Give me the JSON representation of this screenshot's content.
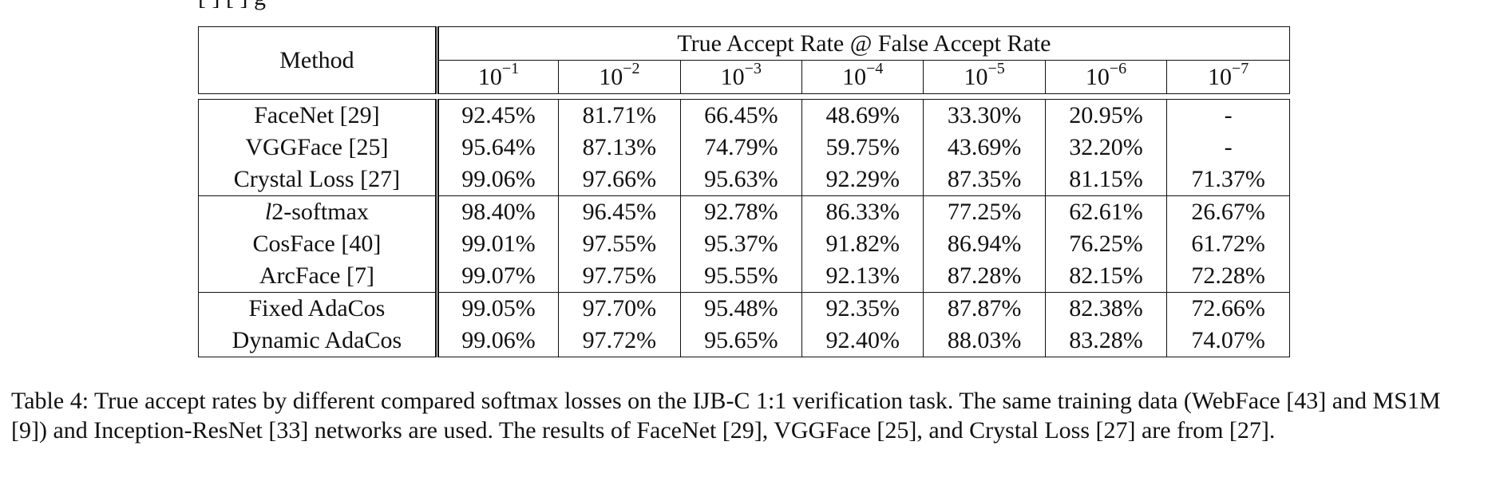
{
  "top_fragment": "[ ]              [ ]          g",
  "table": {
    "method_header": "Method",
    "group_header": "True Accept Rate @ False Accept Rate",
    "far_base": "10",
    "far_exponents": [
      "−1",
      "−2",
      "−3",
      "−4",
      "−5",
      "−6",
      "−7"
    ],
    "groups": [
      {
        "rows": [
          {
            "method": "FaceNet [29]",
            "bold_method": false,
            "values": [
              "92.45%",
              "81.71%",
              "66.45%",
              "48.69%",
              "33.30%",
              "20.95%",
              "-"
            ],
            "bold": [
              false,
              false,
              false,
              false,
              false,
              false,
              false
            ]
          },
          {
            "method": "VGGFace [25]",
            "bold_method": false,
            "values": [
              "95.64%",
              "87.13%",
              "74.79%",
              "59.75%",
              "43.69%",
              "32.20%",
              "-"
            ],
            "bold": [
              false,
              false,
              false,
              false,
              false,
              false,
              false
            ]
          },
          {
            "method": "Crystal Loss [27]",
            "bold_method": false,
            "values": [
              "99.06%",
              "97.66%",
              "95.63%",
              "92.29%",
              "87.35%",
              "81.15%",
              "71.37%"
            ],
            "bold": [
              false,
              false,
              false,
              false,
              false,
              false,
              false
            ]
          }
        ]
      },
      {
        "rows": [
          {
            "method": "l2-softmax",
            "bold_method": false,
            "values": [
              "98.40%",
              "96.45%",
              "92.78%",
              "86.33%",
              "77.25%",
              "62.61%",
              "26.67%"
            ],
            "bold": [
              false,
              false,
              false,
              false,
              false,
              false,
              false
            ]
          },
          {
            "method": "CosFace [40]",
            "bold_method": false,
            "values": [
              "99.01%",
              "97.55%",
              "95.37%",
              "91.82%",
              "86.94%",
              "76.25%",
              "61.72%"
            ],
            "bold": [
              false,
              false,
              false,
              false,
              false,
              false,
              false
            ]
          },
          {
            "method": "ArcFace [7]",
            "bold_method": false,
            "values": [
              "99.07%",
              "97.75%",
              "95.55%",
              "92.13%",
              "87.28%",
              "82.15%",
              "72.28%"
            ],
            "bold": [
              true,
              true,
              false,
              false,
              false,
              false,
              false
            ]
          }
        ]
      },
      {
        "rows": [
          {
            "method": "Fixed AdaCos",
            "bold_method": false,
            "values": [
              "99.05%",
              "97.70%",
              "95.48%",
              "92.35%",
              "87.87%",
              "82.38%",
              "72.66%"
            ],
            "bold": [
              false,
              false,
              false,
              false,
              false,
              false,
              false
            ]
          },
          {
            "method": "Dynamic AdaCos",
            "bold_method": true,
            "values": [
              "99.06%",
              "97.72%",
              "95.65%",
              "92.40%",
              "88.03%",
              "83.28%",
              "74.07%"
            ],
            "bold": [
              false,
              false,
              true,
              true,
              true,
              true,
              true
            ]
          }
        ]
      }
    ]
  },
  "caption": {
    "label": "Table 4:",
    "text": " True accept rates by different compared softmax losses on the IJB-C 1:1 verification task. The same training data (WebFace [43] and MS1M [9]) and Inception-ResNet [33] networks are used. The results of FaceNet [29], VGGFace [25], and Crystal Loss [27] are from [27]."
  }
}
